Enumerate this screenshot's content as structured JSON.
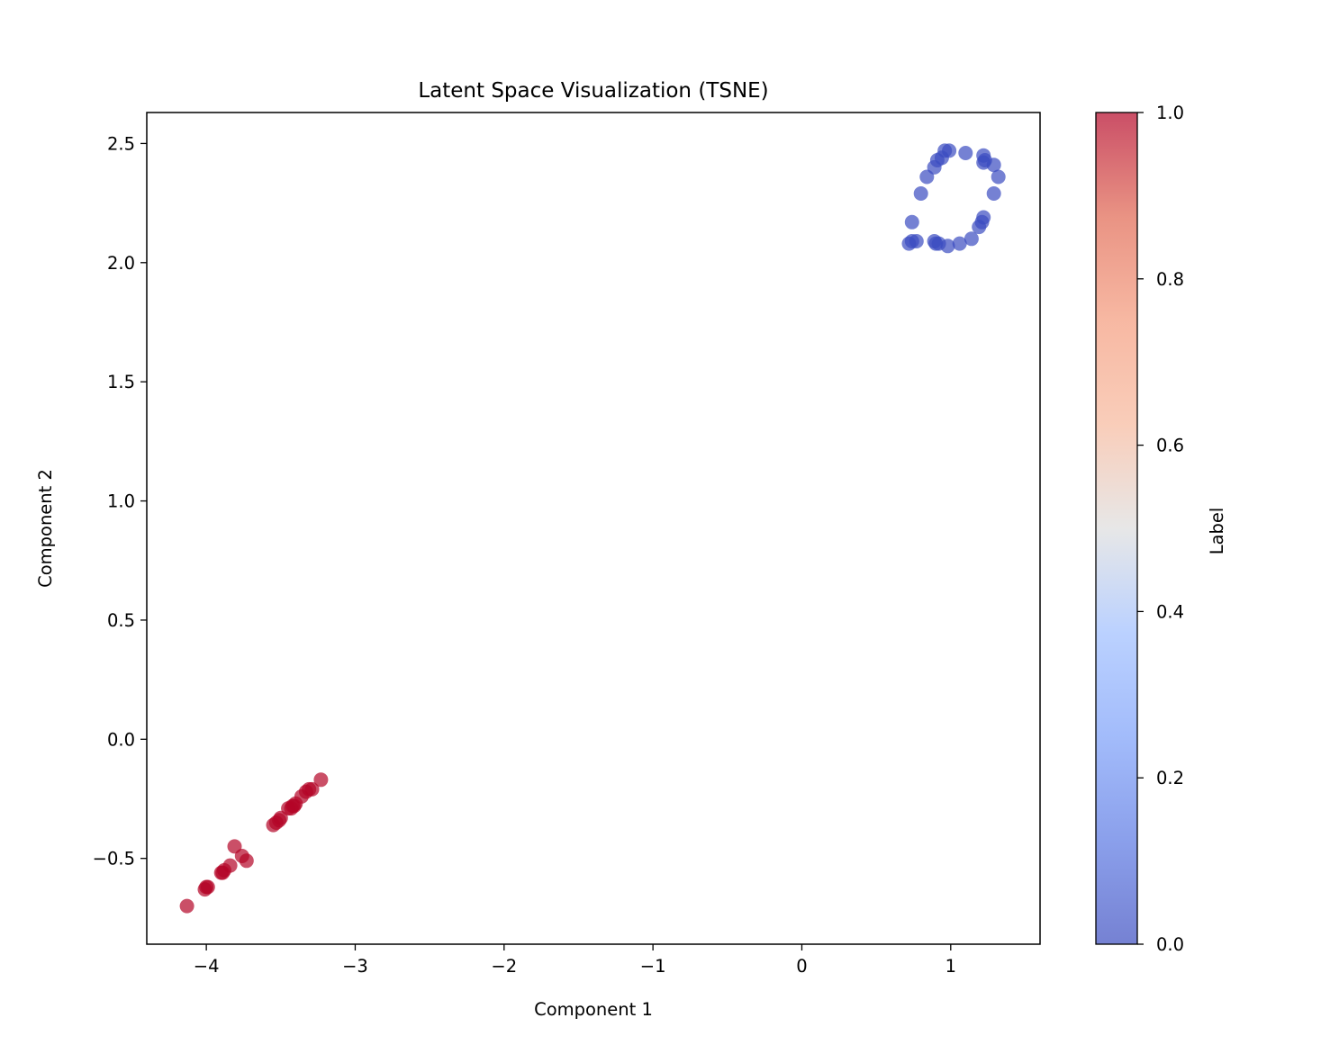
{
  "chart_data": {
    "type": "scatter",
    "title": "Latent Space Visualization (TSNE)",
    "xlabel": "Component 1",
    "ylabel": "Component 2",
    "xlim": [
      -4.4,
      1.6
    ],
    "ylim": [
      -0.86,
      2.63
    ],
    "xticks": [
      -4,
      -3,
      -2,
      -1,
      0,
      1
    ],
    "xtick_labels": [
      "−4",
      "−3",
      "−2",
      "−1",
      "0",
      "1"
    ],
    "yticks": [
      -0.5,
      0.0,
      0.5,
      1.0,
      1.5,
      2.0,
      2.5
    ],
    "ytick_labels": [
      "−0.5",
      "0.0",
      "0.5",
      "1.0",
      "1.5",
      "2.0",
      "2.5"
    ],
    "grid": false,
    "colormap": "coolwarm",
    "marker_alpha": 0.7,
    "colorbar": {
      "label": "Label",
      "range": [
        0.0,
        1.0
      ],
      "ticks": [
        0.0,
        0.2,
        0.4,
        0.6,
        0.8,
        1.0
      ],
      "tick_labels": [
        "0.0",
        "0.2",
        "0.4",
        "0.6",
        "0.8",
        "1.0"
      ]
    },
    "series": [
      {
        "label_value": 0,
        "color": "#3b4cc0",
        "points": [
          [
            0.72,
            2.08
          ],
          [
            0.74,
            2.09
          ],
          [
            0.77,
            2.09
          ],
          [
            0.74,
            2.17
          ],
          [
            0.8,
            2.29
          ],
          [
            0.84,
            2.36
          ],
          [
            0.89,
            2.4
          ],
          [
            0.91,
            2.43
          ],
          [
            0.94,
            2.44
          ],
          [
            0.96,
            2.47
          ],
          [
            0.99,
            2.47
          ],
          [
            1.1,
            2.46
          ],
          [
            1.22,
            2.45
          ],
          [
            1.23,
            2.43
          ],
          [
            1.22,
            2.42
          ],
          [
            1.29,
            2.41
          ],
          [
            1.32,
            2.36
          ],
          [
            1.29,
            2.29
          ],
          [
            1.22,
            2.19
          ],
          [
            1.21,
            2.17
          ],
          [
            1.19,
            2.15
          ],
          [
            1.14,
            2.1
          ],
          [
            1.06,
            2.08
          ],
          [
            0.98,
            2.07
          ],
          [
            0.9,
            2.08
          ],
          [
            0.92,
            2.08
          ],
          [
            0.89,
            2.09
          ]
        ]
      },
      {
        "label_value": 1,
        "color": "#b40426",
        "points": [
          [
            -4.13,
            -0.7
          ],
          [
            -4.0,
            -0.62
          ],
          [
            -3.99,
            -0.62
          ],
          [
            -4.01,
            -0.63
          ],
          [
            -3.9,
            -0.56
          ],
          [
            -3.88,
            -0.55
          ],
          [
            -3.89,
            -0.56
          ],
          [
            -3.84,
            -0.53
          ],
          [
            -3.81,
            -0.45
          ],
          [
            -3.76,
            -0.49
          ],
          [
            -3.73,
            -0.51
          ],
          [
            -3.55,
            -0.36
          ],
          [
            -3.53,
            -0.35
          ],
          [
            -3.51,
            -0.34
          ],
          [
            -3.5,
            -0.33
          ],
          [
            -3.45,
            -0.29
          ],
          [
            -3.43,
            -0.29
          ],
          [
            -3.42,
            -0.28
          ],
          [
            -3.41,
            -0.28
          ],
          [
            -3.4,
            -0.27
          ],
          [
            -3.36,
            -0.24
          ],
          [
            -3.33,
            -0.22
          ],
          [
            -3.31,
            -0.21
          ],
          [
            -3.29,
            -0.21
          ],
          [
            -3.23,
            -0.17
          ]
        ]
      }
    ]
  }
}
